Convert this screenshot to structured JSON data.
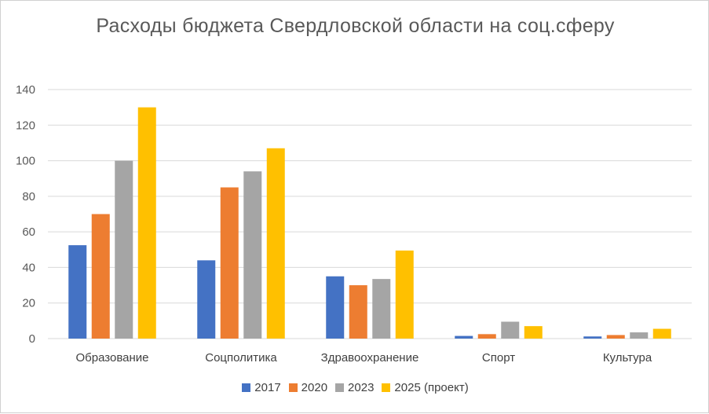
{
  "chart_data": {
    "type": "bar",
    "title": "Расходы бюджета Свердловской области на соц.сферу",
    "categories": [
      "Образование",
      "Соцполитика",
      "Здравоохранение",
      "Спорт",
      "Культура"
    ],
    "series": [
      {
        "name": "2017",
        "color": "#4472C4",
        "values": [
          52.5,
          44,
          35,
          1.5,
          1.2
        ]
      },
      {
        "name": "2020",
        "color": "#ED7D31",
        "values": [
          70,
          85,
          30,
          2.5,
          2
        ]
      },
      {
        "name": "2023",
        "color": "#A5A5A5",
        "values": [
          100,
          94,
          33.5,
          9.5,
          3.5
        ]
      },
      {
        "name": "2025 (проект)",
        "color": "#FFC000",
        "values": [
          130,
          107,
          49.5,
          7,
          5.5
        ]
      }
    ],
    "ylim": [
      0,
      140
    ],
    "yticks": [
      "0",
      "20",
      "40",
      "60",
      "80",
      "100",
      "120",
      "140"
    ],
    "xlabel": "",
    "ylabel": "",
    "grid": true,
    "legend_position": "bottom"
  }
}
